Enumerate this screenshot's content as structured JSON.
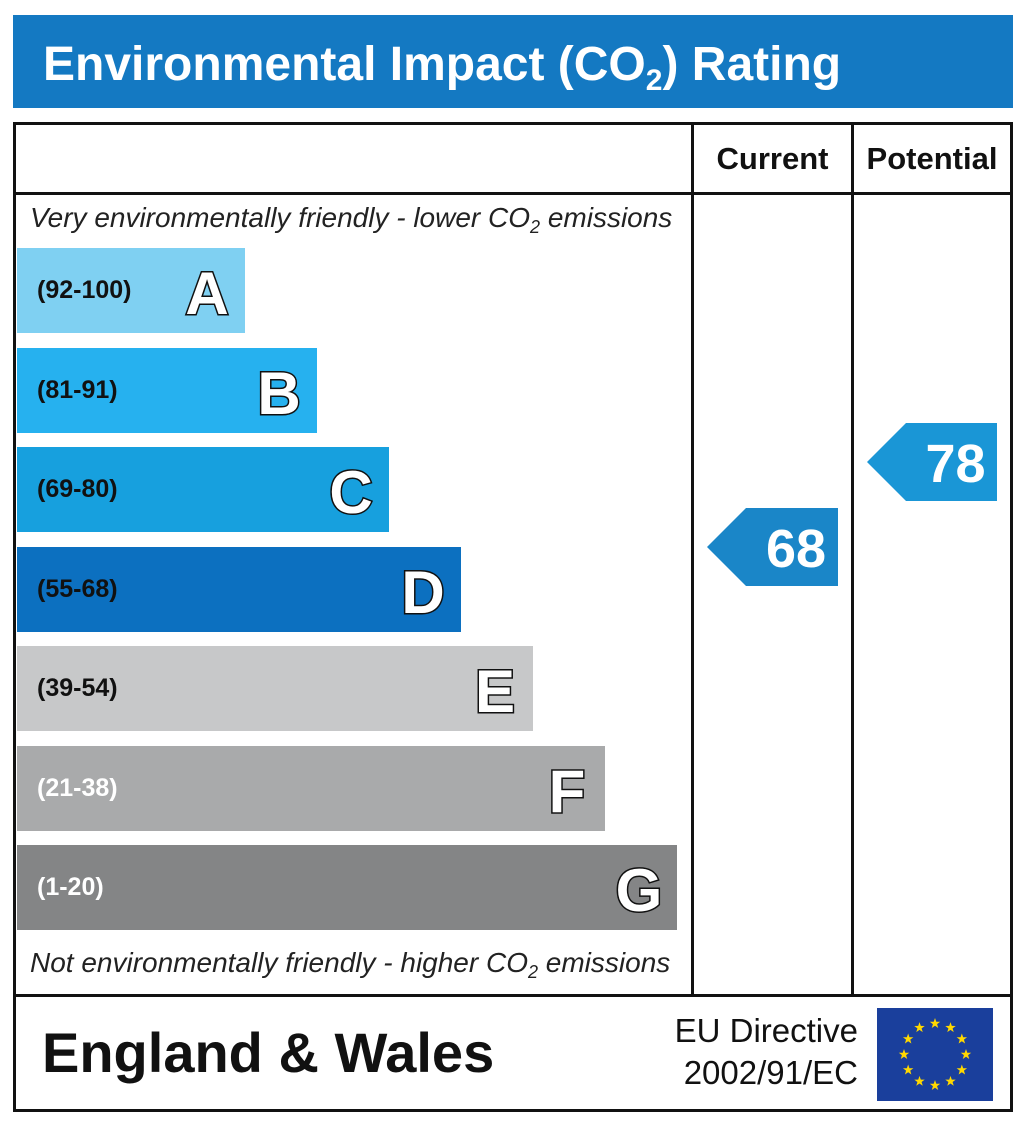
{
  "header": {
    "title_main": "Environmental Impact (CO",
    "title_sub": "2",
    "title_end": ") Rating",
    "background": "#1479c2"
  },
  "columns": {
    "current": "Current",
    "potential": "Potential"
  },
  "captions": {
    "top_main": "Very environmentally friendly - lower CO",
    "top_sub": "2",
    "top_end": " emissions",
    "bottom_main": "Not environmentally friendly - higher CO",
    "bottom_sub": "2",
    "bottom_end": " emissions"
  },
  "footer": {
    "country": "England & Wales",
    "directive_line1": "EU Directive",
    "directive_line2": "2002/91/EC",
    "flag_icon": "eu-flag-icon"
  },
  "chart_data": {
    "type": "bar",
    "categories": [
      "A",
      "B",
      "C",
      "D",
      "E",
      "F",
      "G"
    ],
    "ranges": [
      "(92-100)",
      "(81-91)",
      "(69-80)",
      "(55-68)",
      "(39-54)",
      "(21-38)",
      "(1-20)"
    ],
    "colors": [
      "#7fd0f2",
      "#26b1ef",
      "#17a0de",
      "#0c70c0",
      "#c7c8c9",
      "#a9aaab",
      "#848586"
    ],
    "range_text_colors": [
      "#111111",
      "#111111",
      "#111111",
      "#111111",
      "#111111",
      "#ffffff",
      "#ffffff"
    ],
    "current": {
      "value": 68,
      "band": "D",
      "color": "#1a86c8"
    },
    "potential": {
      "value": 78,
      "band": "C",
      "color": "#1a96d6"
    }
  }
}
